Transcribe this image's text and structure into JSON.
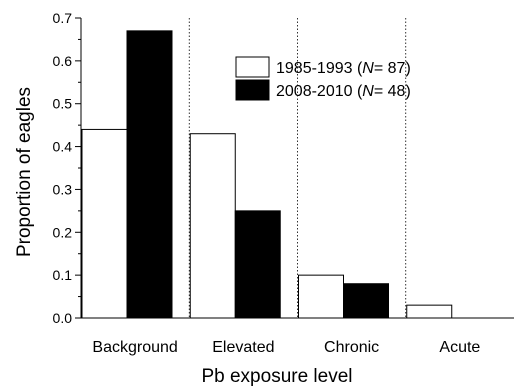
{
  "chart_data": {
    "type": "bar",
    "title": "",
    "xlabel": "Pb exposure level",
    "ylabel": "Proportion of eagles",
    "ylim": [
      0,
      0.7
    ],
    "yticks": [
      "0.0",
      "0.1",
      "0.2",
      "0.3",
      "0.4",
      "0.5",
      "0.6",
      "0.7"
    ],
    "categories": [
      "Background",
      "Elevated",
      "Chronic",
      "Acute"
    ],
    "series": [
      {
        "name": "1985-1993",
        "n_label": "N",
        "n_value": "= 87)",
        "fill": "#ffffff",
        "values": [
          0.44,
          0.43,
          0.1,
          0.03
        ]
      },
      {
        "name": "2008-2010",
        "n_label": "N",
        "n_value": "= 48)",
        "fill": "#000000",
        "values": [
          0.67,
          0.25,
          0.08,
          0.0
        ]
      }
    ],
    "grid": false,
    "category_separators": "dotted vertical lines",
    "legend_position": "top-right"
  }
}
